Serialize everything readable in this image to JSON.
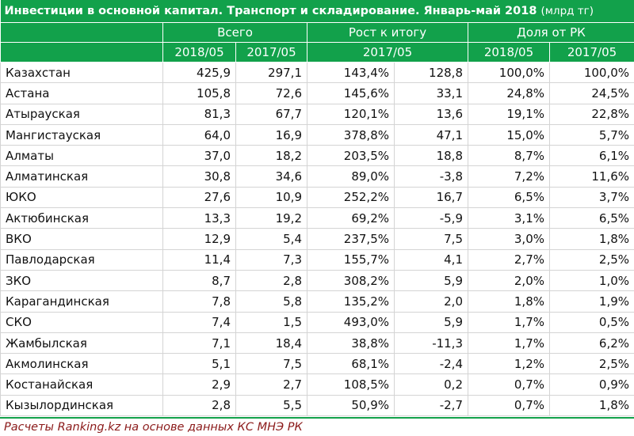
{
  "header": {
    "title": "Инвестиции в основной капитал. Транспорт и складирование. Январь-май 2018",
    "unit": "(млрд тг)",
    "groups": [
      "Всего",
      "Рост к итогу",
      "Доля от РК"
    ],
    "subheaders": [
      "2018/05",
      "2017/05",
      "2017/05",
      "2018/05",
      "2017/05"
    ]
  },
  "table": {
    "rows": [
      [
        "Казахстан",
        "425,9",
        "297,1",
        "143,4%",
        "128,8",
        "100,0%",
        "100,0%"
      ],
      [
        "Астана",
        "105,8",
        "72,6",
        "145,6%",
        "33,1",
        "24,8%",
        "24,5%"
      ],
      [
        "Атырауская",
        "81,3",
        "67,7",
        "120,1%",
        "13,6",
        "19,1%",
        "22,8%"
      ],
      [
        "Мангистауская",
        "64,0",
        "16,9",
        "378,8%",
        "47,1",
        "15,0%",
        "5,7%"
      ],
      [
        "Алматы",
        "37,0",
        "18,2",
        "203,5%",
        "18,8",
        "8,7%",
        "6,1%"
      ],
      [
        "Алматинская",
        "30,8",
        "34,6",
        "89,0%",
        "-3,8",
        "7,2%",
        "11,6%"
      ],
      [
        "ЮКО",
        "27,6",
        "10,9",
        "252,2%",
        "16,7",
        "6,5%",
        "3,7%"
      ],
      [
        "Актюбинская",
        "13,3",
        "19,2",
        "69,2%",
        "-5,9",
        "3,1%",
        "6,5%"
      ],
      [
        "ВКО",
        "12,9",
        "5,4",
        "237,5%",
        "7,5",
        "3,0%",
        "1,8%"
      ],
      [
        "Павлодарская",
        "11,4",
        "7,3",
        "155,7%",
        "4,1",
        "2,7%",
        "2,5%"
      ],
      [
        "ЗКО",
        "8,7",
        "2,8",
        "308,2%",
        "5,9",
        "2,0%",
        "1,0%"
      ],
      [
        "Карагандинская",
        "7,8",
        "5,8",
        "135,2%",
        "2,0",
        "1,8%",
        "1,9%"
      ],
      [
        "СКО",
        "7,4",
        "1,5",
        "493,0%",
        "5,9",
        "1,7%",
        "0,5%"
      ],
      [
        "Жамбылская",
        "7,1",
        "18,4",
        "38,8%",
        "-11,3",
        "1,7%",
        "6,2%"
      ],
      [
        "Акмолинская",
        "5,1",
        "7,5",
        "68,1%",
        "-2,4",
        "1,2%",
        "2,5%"
      ],
      [
        "Костанайская",
        "2,9",
        "2,7",
        "108,5%",
        "0,2",
        "0,7%",
        "0,9%"
      ],
      [
        "Кызылординская",
        "2,8",
        "5,5",
        "50,9%",
        "-2,7",
        "0,7%",
        "1,8%"
      ]
    ]
  },
  "footer": {
    "text": "Расчеты Ranking.kz на основе данных КС МНЭ РК"
  }
}
